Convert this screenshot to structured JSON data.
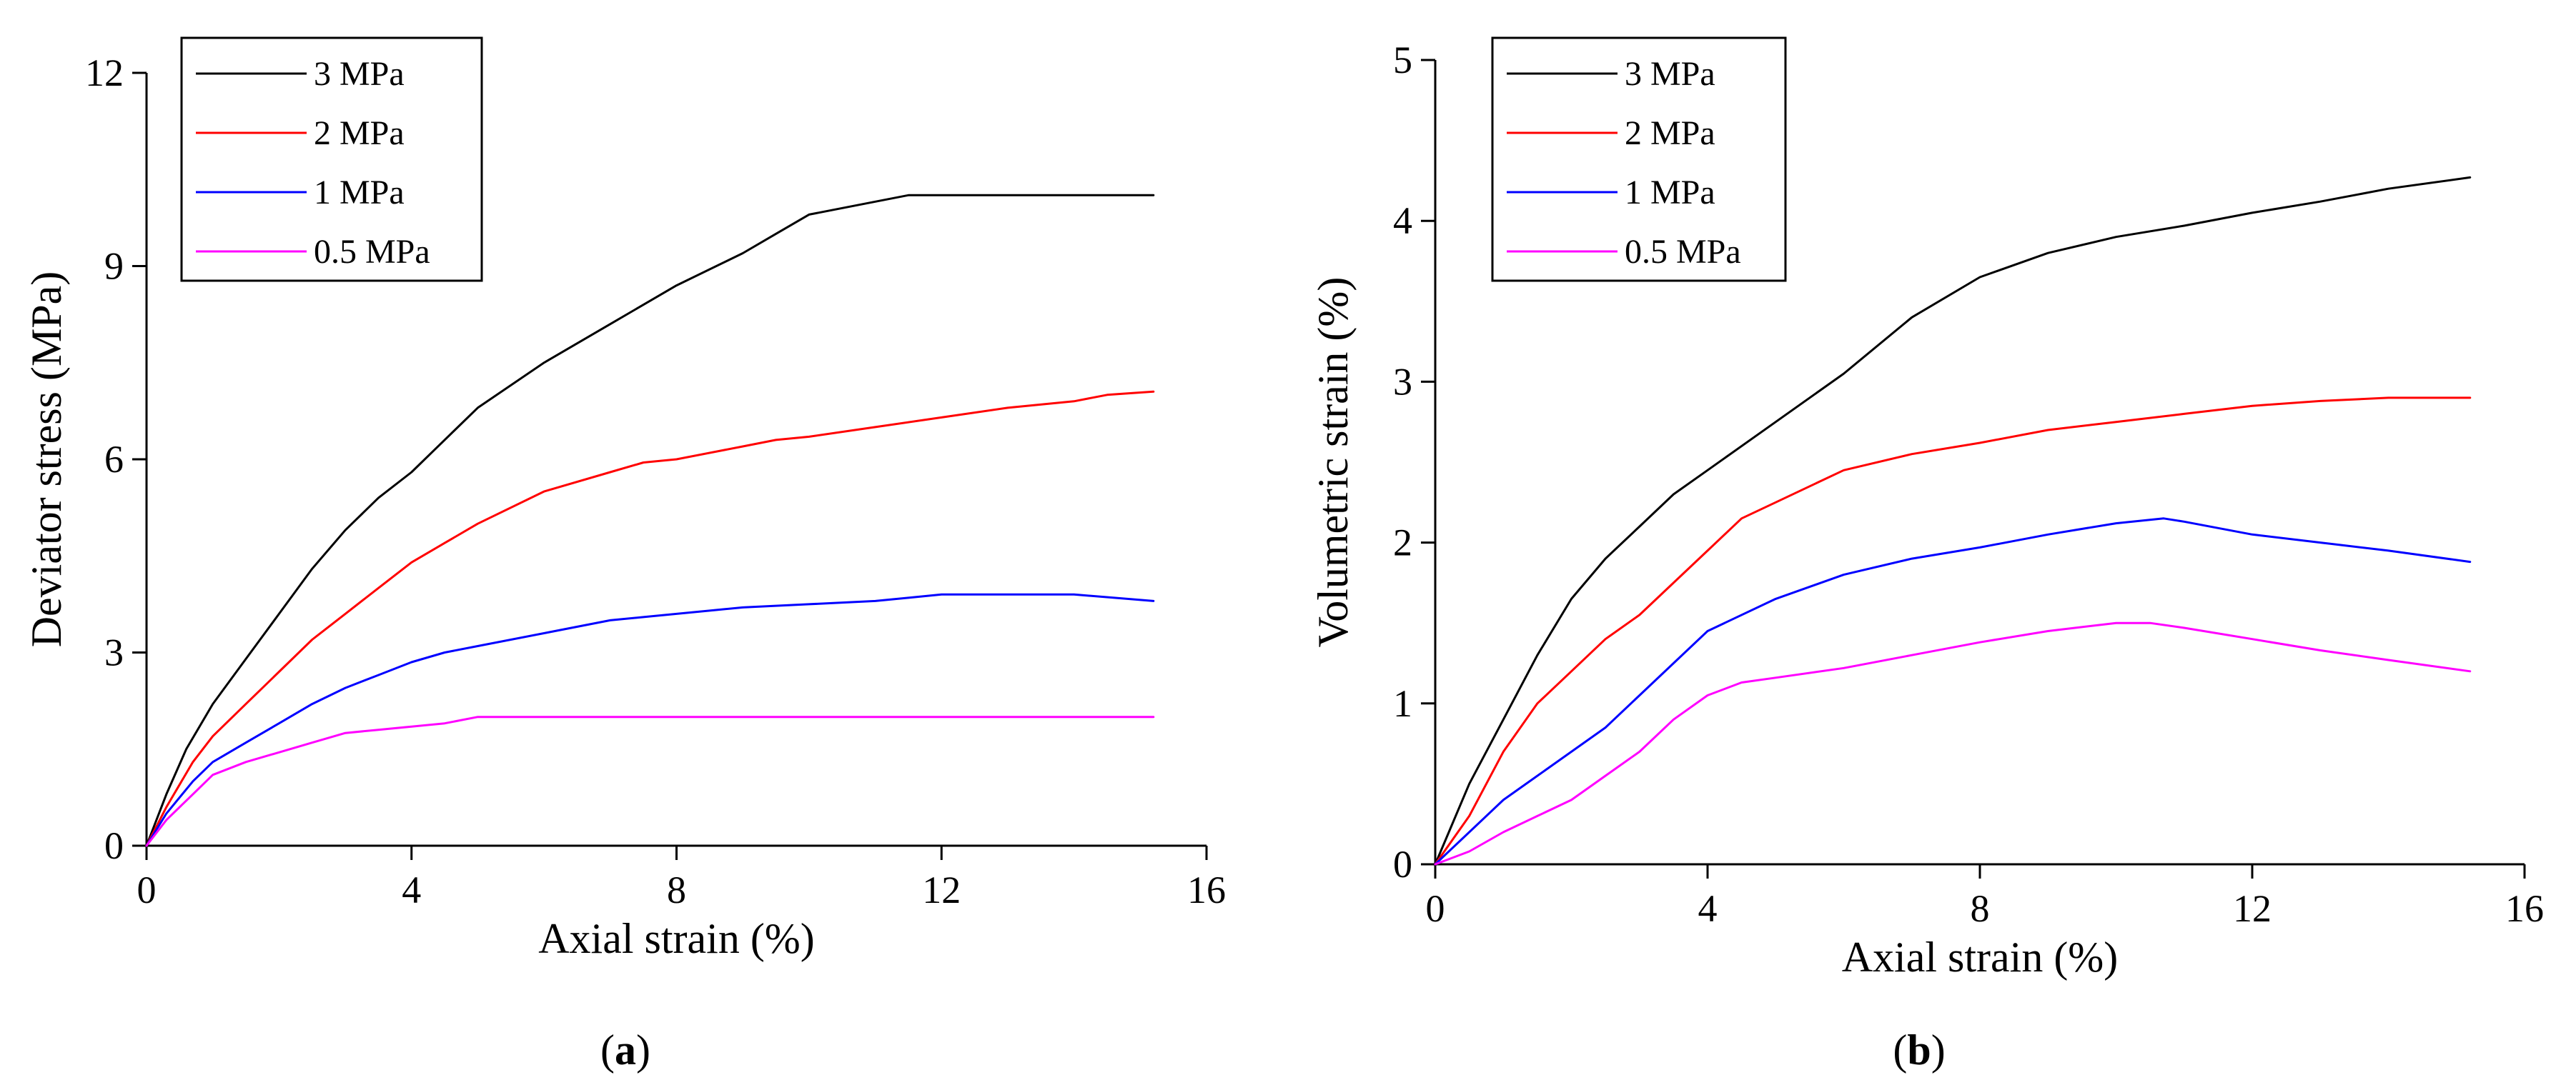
{
  "chart_data": [
    {
      "type": "line",
      "panel_label": "a",
      "xlabel": "Axial strain (%)",
      "ylabel": "Deviator stress (MPa)",
      "xlim": [
        0,
        16
      ],
      "ylim": [
        0,
        12
      ],
      "xticks": [
        "0",
        "4",
        "8",
        "12",
        "16"
      ],
      "yticks": [
        "0",
        "3",
        "6",
        "9",
        "12"
      ],
      "legend_position": "top-left",
      "series": [
        {
          "name": "3 MPa",
          "color": "#000000",
          "points": [
            [
              0,
              0
            ],
            [
              0.3,
              0.8
            ],
            [
              0.6,
              1.5
            ],
            [
              1,
              2.2
            ],
            [
              1.5,
              2.9
            ],
            [
              2,
              3.6
            ],
            [
              2.5,
              4.3
            ],
            [
              3,
              4.9
            ],
            [
              3.5,
              5.4
            ],
            [
              4,
              5.8
            ],
            [
              4.5,
              6.3
            ],
            [
              5,
              6.8
            ],
            [
              6,
              7.5
            ],
            [
              7,
              8.1
            ],
            [
              8,
              8.7
            ],
            [
              9,
              9.2
            ],
            [
              9.5,
              9.5
            ],
            [
              10,
              9.8
            ],
            [
              11,
              10.0
            ],
            [
              11.5,
              10.1
            ],
            [
              12,
              10.1
            ],
            [
              13,
              10.1
            ],
            [
              14,
              10.1
            ],
            [
              15.2,
              10.1
            ]
          ]
        },
        {
          "name": "2 MPa",
          "color": "#ff0000",
          "points": [
            [
              0,
              0
            ],
            [
              0.3,
              0.6
            ],
            [
              0.7,
              1.3
            ],
            [
              1,
              1.7
            ],
            [
              1.5,
              2.2
            ],
            [
              2,
              2.7
            ],
            [
              2.5,
              3.2
            ],
            [
              3,
              3.6
            ],
            [
              3.5,
              4.0
            ],
            [
              4,
              4.4
            ],
            [
              4.5,
              4.7
            ],
            [
              5,
              5.0
            ],
            [
              6,
              5.5
            ],
            [
              7,
              5.8
            ],
            [
              7.5,
              5.95
            ],
            [
              8,
              6.0
            ],
            [
              9,
              6.2
            ],
            [
              9.5,
              6.3
            ],
            [
              10,
              6.35
            ],
            [
              11,
              6.5
            ],
            [
              12,
              6.65
            ],
            [
              13,
              6.8
            ],
            [
              14,
              6.9
            ],
            [
              14.5,
              7.0
            ],
            [
              15.2,
              7.05
            ]
          ]
        },
        {
          "name": "1 MPa",
          "color": "#0000ff",
          "points": [
            [
              0,
              0
            ],
            [
              0.3,
              0.5
            ],
            [
              0.7,
              1.0
            ],
            [
              1,
              1.3
            ],
            [
              1.5,
              1.6
            ],
            [
              2,
              1.9
            ],
            [
              2.5,
              2.2
            ],
            [
              3,
              2.45
            ],
            [
              3.5,
              2.65
            ],
            [
              4,
              2.85
            ],
            [
              4.5,
              3.0
            ],
            [
              5,
              3.1
            ],
            [
              6,
              3.3
            ],
            [
              7,
              3.5
            ],
            [
              7.5,
              3.55
            ],
            [
              8,
              3.6
            ],
            [
              8.5,
              3.65
            ],
            [
              9,
              3.7
            ],
            [
              10,
              3.75
            ],
            [
              11,
              3.8
            ],
            [
              11.5,
              3.85
            ],
            [
              12,
              3.9
            ],
            [
              13,
              3.9
            ],
            [
              14,
              3.9
            ],
            [
              15.2,
              3.8
            ]
          ]
        },
        {
          "name": "0.5 MPa",
          "color": "#ff00ff",
          "points": [
            [
              0,
              0
            ],
            [
              0.3,
              0.4
            ],
            [
              0.7,
              0.8
            ],
            [
              1,
              1.1
            ],
            [
              1.5,
              1.3
            ],
            [
              2,
              1.45
            ],
            [
              2.5,
              1.6
            ],
            [
              3,
              1.75
            ],
            [
              3.5,
              1.8
            ],
            [
              4,
              1.85
            ],
            [
              4.5,
              1.9
            ],
            [
              5,
              2.0
            ],
            [
              6,
              2.0
            ],
            [
              8,
              2.0
            ],
            [
              10,
              2.0
            ],
            [
              12,
              2.0
            ],
            [
              14,
              2.0
            ],
            [
              15.2,
              2.0
            ]
          ]
        }
      ]
    },
    {
      "type": "line",
      "panel_label": "b",
      "xlabel": "Axial strain (%)",
      "ylabel": "Volumetric strain (%)",
      "xlim": [
        0,
        16
      ],
      "ylim": [
        0,
        5
      ],
      "xticks": [
        "0",
        "4",
        "8",
        "12",
        "16"
      ],
      "yticks": [
        "0",
        "1",
        "2",
        "3",
        "4",
        "5"
      ],
      "legend_position": "top-left",
      "series": [
        {
          "name": "3 MPa",
          "color": "#000000",
          "points": [
            [
              0,
              0
            ],
            [
              0.5,
              0.5
            ],
            [
              1,
              0.9
            ],
            [
              1.5,
              1.3
            ],
            [
              2,
              1.65
            ],
            [
              2.5,
              1.9
            ],
            [
              3,
              2.1
            ],
            [
              3.5,
              2.3
            ],
            [
              4,
              2.45
            ],
            [
              5,
              2.75
            ],
            [
              6,
              3.05
            ],
            [
              7,
              3.4
            ],
            [
              8,
              3.65
            ],
            [
              9,
              3.8
            ],
            [
              10,
              3.9
            ],
            [
              11,
              3.97
            ],
            [
              12,
              4.05
            ],
            [
              13,
              4.12
            ],
            [
              14,
              4.2
            ],
            [
              15.2,
              4.27
            ]
          ]
        },
        {
          "name": "2 MPa",
          "color": "#ff0000",
          "points": [
            [
              0,
              0
            ],
            [
              0.5,
              0.3
            ],
            [
              1,
              0.7
            ],
            [
              1.5,
              1.0
            ],
            [
              2,
              1.2
            ],
            [
              2.5,
              1.4
            ],
            [
              3,
              1.55
            ],
            [
              3.5,
              1.75
            ],
            [
              4,
              1.95
            ],
            [
              4.5,
              2.15
            ],
            [
              5,
              2.25
            ],
            [
              6,
              2.45
            ],
            [
              7,
              2.55
            ],
            [
              8,
              2.62
            ],
            [
              9,
              2.7
            ],
            [
              10,
              2.75
            ],
            [
              11,
              2.8
            ],
            [
              12,
              2.85
            ],
            [
              13,
              2.88
            ],
            [
              14,
              2.9
            ],
            [
              15.2,
              2.9
            ]
          ]
        },
        {
          "name": "1 MPa",
          "color": "#0000ff",
          "points": [
            [
              0,
              0
            ],
            [
              0.5,
              0.2
            ],
            [
              1,
              0.4
            ],
            [
              1.5,
              0.55
            ],
            [
              2,
              0.7
            ],
            [
              2.5,
              0.85
            ],
            [
              3,
              1.05
            ],
            [
              3.5,
              1.25
            ],
            [
              4,
              1.45
            ],
            [
              5,
              1.65
            ],
            [
              6,
              1.8
            ],
            [
              7,
              1.9
            ],
            [
              8,
              1.97
            ],
            [
              9,
              2.05
            ],
            [
              10,
              2.12
            ],
            [
              10.7,
              2.15
            ],
            [
              11,
              2.13
            ],
            [
              12,
              2.05
            ],
            [
              13,
              2.0
            ],
            [
              14,
              1.95
            ],
            [
              15.2,
              1.88
            ]
          ]
        },
        {
          "name": "0.5 MPa",
          "color": "#ff00ff",
          "points": [
            [
              0,
              0
            ],
            [
              0.5,
              0.08
            ],
            [
              1,
              0.2
            ],
            [
              1.5,
              0.3
            ],
            [
              2,
              0.4
            ],
            [
              2.5,
              0.55
            ],
            [
              3,
              0.7
            ],
            [
              3.5,
              0.9
            ],
            [
              4,
              1.05
            ],
            [
              4.5,
              1.13
            ],
            [
              5,
              1.16
            ],
            [
              6,
              1.22
            ],
            [
              7,
              1.3
            ],
            [
              8,
              1.38
            ],
            [
              9,
              1.45
            ],
            [
              10,
              1.5
            ],
            [
              10.5,
              1.5
            ],
            [
              11,
              1.47
            ],
            [
              12,
              1.4
            ],
            [
              13,
              1.33
            ],
            [
              14,
              1.27
            ],
            [
              15.2,
              1.2
            ]
          ]
        }
      ]
    }
  ]
}
